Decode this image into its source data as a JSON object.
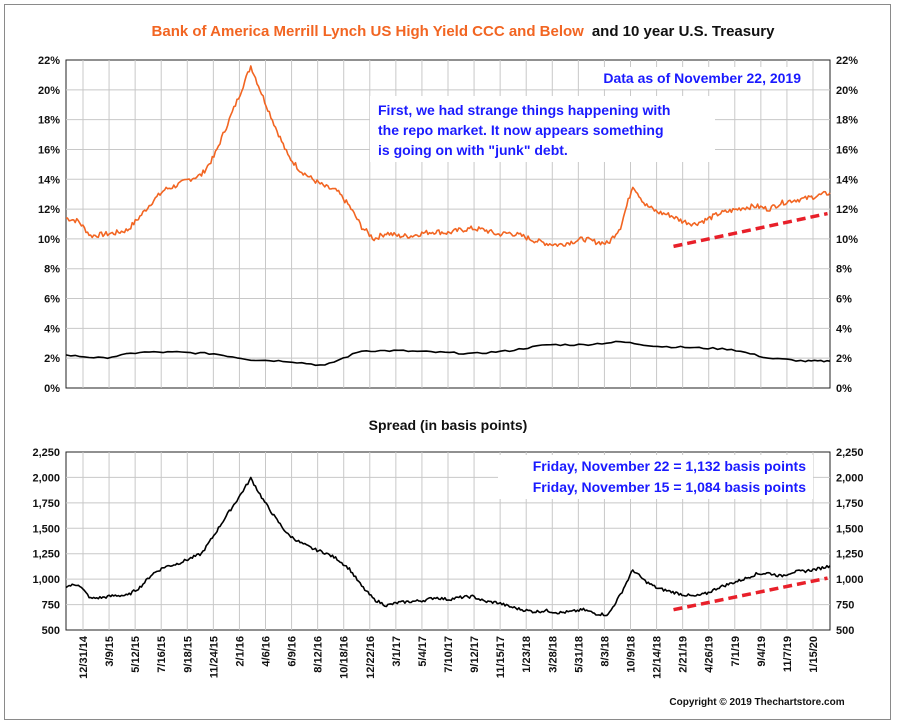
{
  "chart_data": [
    {
      "type": "line",
      "title_part1": "Bank of America Merrill Lynch US High Yield CCC and Below",
      "title_part2": "and 10 year U.S. Treasury",
      "ylim": [
        0,
        22
      ],
      "yticks": [
        "0%",
        "2%",
        "4%",
        "6%",
        "8%",
        "10%",
        "12%",
        "14%",
        "16%",
        "18%",
        "20%",
        "22%"
      ],
      "annotation_date": "Data as of November 22, 2019",
      "annotation_note": [
        "First, we had strange things happening with",
        "the repo market.  It now appears something",
        "is going on with \"junk\" debt."
      ],
      "colors": {
        "ccc": "#f26522",
        "treasury": "#000000",
        "trend": "#e8202a",
        "annotation": "#1a1aff"
      },
      "series": [
        {
          "name": "BofA ML US High Yield CCC and Below",
          "t": [
            0,
            1,
            2,
            3,
            4,
            5,
            6,
            7,
            8,
            9,
            10,
            11,
            12,
            13,
            14,
            15,
            16,
            17,
            18,
            19,
            20,
            21,
            22,
            23,
            24,
            25,
            26,
            27,
            28,
            29,
            30,
            31,
            32,
            33,
            34,
            35,
            36,
            37,
            38,
            39,
            40,
            41,
            42,
            43,
            44,
            45,
            46,
            47,
            48,
            49,
            50,
            51,
            52,
            53,
            54,
            55,
            56,
            57,
            58,
            59,
            60,
            61,
            62
          ],
          "values": [
            11.4,
            11.2,
            10.2,
            10.3,
            10.4,
            10.6,
            11.5,
            12.5,
            13.3,
            13.6,
            14.0,
            14.3,
            15.5,
            17.5,
            19.5,
            21.6,
            19.5,
            17.5,
            15.6,
            14.6,
            14.0,
            13.5,
            13.2,
            12.2,
            10.8,
            10.0,
            10.4,
            10.2,
            10.2,
            10.4,
            10.5,
            10.4,
            10.6,
            10.7,
            10.6,
            10.3,
            10.4,
            10.2,
            9.9,
            9.7,
            9.6,
            9.8,
            10.0,
            9.8,
            9.7,
            10.8,
            13.6,
            12.3,
            11.8,
            11.6,
            11.2,
            11.0,
            11.3,
            11.7,
            11.9,
            12.1,
            12.2,
            12.0,
            12.4,
            12.6,
            12.7,
            12.9,
            13.1
          ]
        },
        {
          "name": "10 year U.S. Treasury",
          "t": [
            0,
            3,
            6,
            9,
            12,
            15,
            18,
            21,
            24,
            27,
            30,
            33,
            36,
            39,
            42,
            45,
            48,
            51,
            54,
            57,
            60,
            62
          ],
          "values": [
            2.2,
            2.0,
            2.4,
            2.4,
            2.3,
            1.9,
            1.8,
            1.5,
            2.5,
            2.5,
            2.4,
            2.3,
            2.5,
            2.9,
            2.9,
            3.1,
            2.8,
            2.7,
            2.6,
            2.0,
            1.8,
            1.8
          ]
        }
      ],
      "trend": {
        "from": [
          49.3,
          9.5
        ],
        "to": [
          61.8,
          11.7
        ]
      }
    },
    {
      "type": "line",
      "title": "Spread (in basis points)",
      "ylim": [
        500,
        2250
      ],
      "yticks": [
        "500",
        "750",
        "1,000",
        "1,250",
        "1,500",
        "1,750",
        "2,000",
        "2,250"
      ],
      "annotation_lines": [
        "Friday, November 22 = 1,132 basis points",
        "Friday, November 15 = 1,084 basis points"
      ],
      "series": [
        {
          "name": "Spread",
          "t": [
            0,
            1,
            2,
            3,
            4,
            5,
            6,
            7,
            8,
            9,
            10,
            11,
            12,
            13,
            14,
            15,
            16,
            17,
            18,
            19,
            20,
            21,
            22,
            23,
            24,
            25,
            26,
            27,
            28,
            29,
            30,
            31,
            32,
            33,
            34,
            35,
            36,
            37,
            38,
            39,
            40,
            41,
            42,
            43,
            44,
            45,
            46,
            47,
            48,
            49,
            50,
            51,
            52,
            53,
            54,
            55,
            56,
            57,
            58,
            59,
            60,
            61,
            62
          ],
          "values": [
            930,
            950,
            810,
            820,
            840,
            840,
            920,
            1050,
            1120,
            1150,
            1200,
            1250,
            1430,
            1620,
            1800,
            1990,
            1780,
            1600,
            1440,
            1360,
            1300,
            1260,
            1200,
            1100,
            930,
            800,
            740,
            770,
            780,
            790,
            820,
            800,
            820,
            830,
            780,
            770,
            730,
            700,
            680,
            690,
            670,
            680,
            700,
            660,
            650,
            850,
            1090,
            980,
            910,
            880,
            850,
            830,
            860,
            920,
            960,
            1000,
            1050,
            1060,
            1030,
            1070,
            1080,
            1100,
            1132
          ]
        }
      ],
      "trend": {
        "from": [
          49.3,
          700
        ],
        "to": [
          61.8,
          1010
        ]
      }
    }
  ],
  "x_axis": {
    "labels": [
      "12/31/14",
      "3/9/15",
      "5/12/15",
      "7/16/15",
      "9/18/15",
      "11/24/15",
      "2/1/16",
      "4/6/16",
      "6/9/16",
      "8/12/16",
      "10/18/16",
      "12/22/16",
      "3/1/17",
      "5/4/17",
      "7/10/17",
      "9/12/17",
      "11/15/17",
      "1/23/18",
      "3/28/18",
      "5/31/18",
      "8/3/18",
      "10/9/18",
      "12/14/18",
      "2/21/19",
      "4/26/19",
      "7/1/19",
      "9/4/19",
      "11/7/19",
      "1/15/20"
    ]
  },
  "footer": {
    "copyright": "Copyright © 2019 Thechartstore.com"
  }
}
